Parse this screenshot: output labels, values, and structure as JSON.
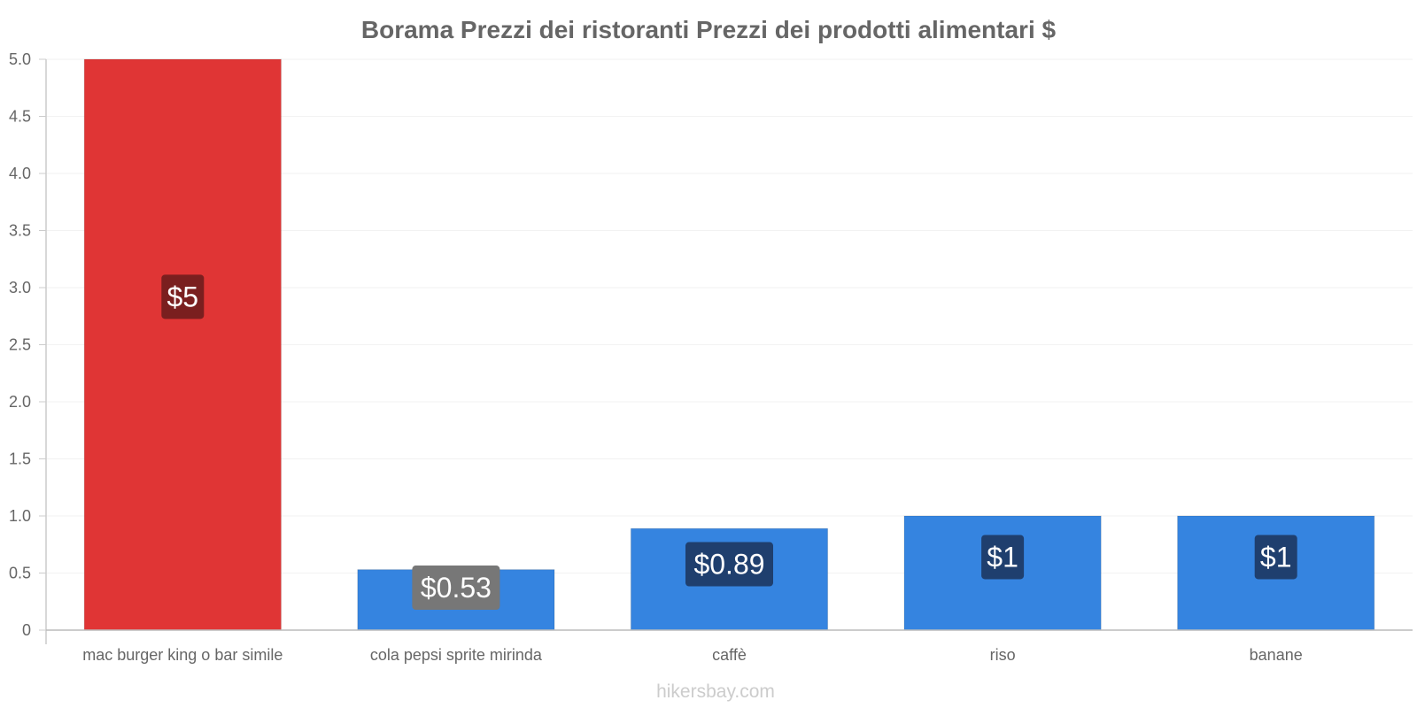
{
  "chart_data": {
    "type": "bar",
    "title": "Borama Prezzi dei ristoranti Prezzi dei prodotti alimentari $",
    "xlabel": "",
    "ylabel": "",
    "categories": [
      "mac burger king o bar simile",
      "cola pepsi sprite mirinda",
      "caffè",
      "riso",
      "banane"
    ],
    "values": [
      5,
      0.53,
      0.89,
      1,
      1
    ],
    "data_labels": [
      "$5",
      "$0.53",
      "$0.89",
      "$1",
      "$1"
    ],
    "ylim": [
      0,
      5
    ],
    "yticks": [
      0,
      0.5,
      1.0,
      1.5,
      2.0,
      2.5,
      3.0,
      3.5,
      4.0,
      4.5,
      5.0
    ],
    "ytick_labels": [
      "0",
      "0.5",
      "1.0",
      "1.5",
      "2.0",
      "2.5",
      "3.0",
      "3.5",
      "4.0",
      "4.5",
      "5.0"
    ],
    "bar_colors": [
      "#e03535",
      "#3584e0",
      "#3584e0",
      "#3584e0",
      "#3584e0"
    ],
    "label_bg_colors": [
      "#7a1f1f",
      "#777777",
      "#1f3f6e",
      "#1f3f6e",
      "#1f3f6e"
    ],
    "grid": true,
    "legend": "none"
  },
  "footer": {
    "watermark": "hikersbay.com"
  }
}
